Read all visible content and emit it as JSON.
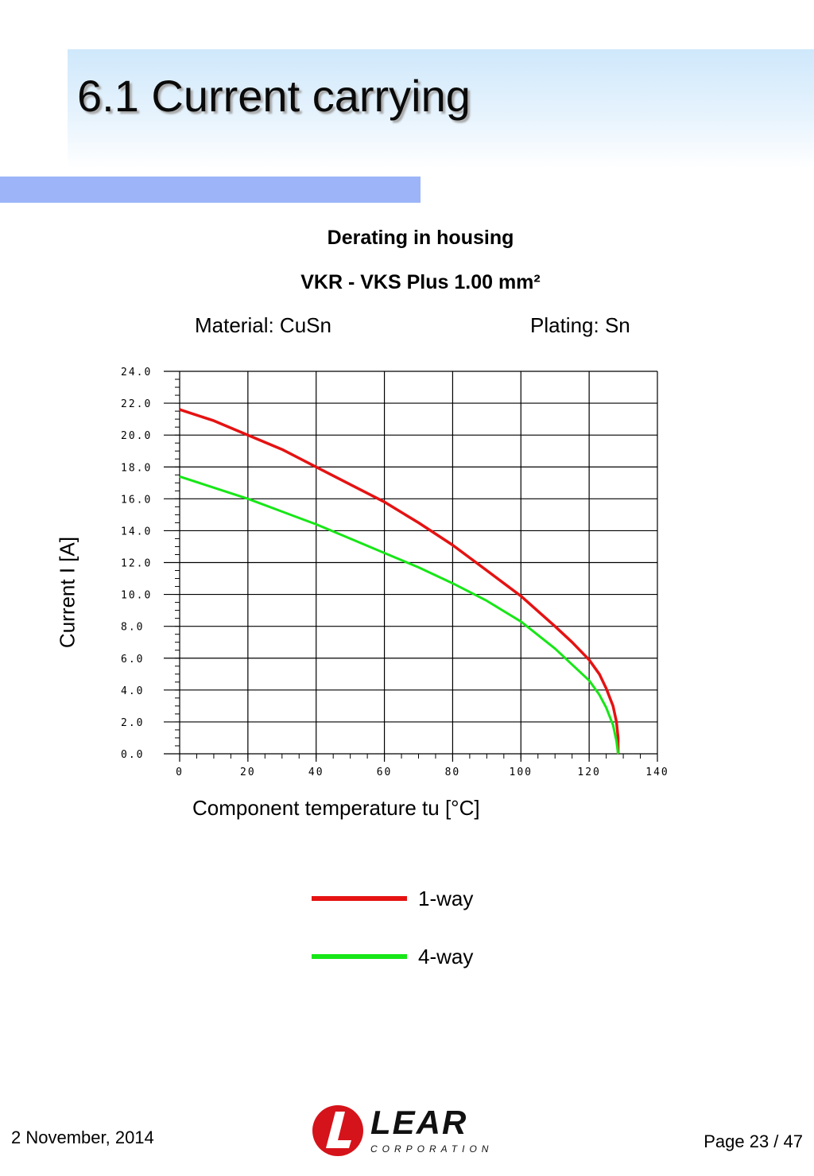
{
  "page": {
    "title": "6.1 Current carrying",
    "chart_title_1": "Derating in housing",
    "chart_title_2": "VKR - VKS  Plus 1.00 mm²",
    "material": "Material: CuSn",
    "plating": "Plating: Sn",
    "footer_date": "2 November, 2014",
    "footer_page": "Page 23 / 47",
    "logo_text": "LEAR",
    "logo_sub": "CORPORATION"
  },
  "colors": {
    "accent_bar": "#9db5f8",
    "red_series": "#e51212",
    "green_series": "#17e617"
  },
  "chart_data": {
    "type": "line",
    "xlabel": "Component temperature tu [°C]",
    "ylabel": "Current I [A]",
    "xlim": [
      0,
      140
    ],
    "ylim": [
      0,
      24
    ],
    "x_ticks": [
      "0",
      "20",
      "40",
      "60",
      "80",
      "100",
      "120",
      "140"
    ],
    "y_ticks": [
      "0.0",
      "2.0",
      "4.0",
      "6.0",
      "8.0",
      "10.0",
      "12.0",
      "14.0",
      "16.0",
      "18.0",
      "20.0",
      "22.0",
      "24.0"
    ],
    "grid": true,
    "legend_position": "bottom",
    "series": [
      {
        "name": "1-way",
        "color": "#e51212",
        "x": [
          0,
          10,
          20,
          30,
          40,
          50,
          60,
          70,
          80,
          90,
          100,
          110,
          115,
          120,
          123,
          125,
          127,
          128,
          128.5,
          128.5
        ],
        "y": [
          21.6,
          20.9,
          20.0,
          19.1,
          18.0,
          16.9,
          15.8,
          14.5,
          13.1,
          11.5,
          9.9,
          8.0,
          7.0,
          5.9,
          5.0,
          4.1,
          3.0,
          2.0,
          1.0,
          0.0
        ]
      },
      {
        "name": "4-way",
        "color": "#17e617",
        "x": [
          0,
          10,
          20,
          30,
          40,
          50,
          60,
          70,
          80,
          90,
          100,
          110,
          115,
          120,
          123,
          125,
          127,
          128,
          128.5
        ],
        "y": [
          17.4,
          16.7,
          16.0,
          15.2,
          14.4,
          13.5,
          12.6,
          11.7,
          10.7,
          9.6,
          8.3,
          6.6,
          5.6,
          4.6,
          3.7,
          2.9,
          1.8,
          0.8,
          0.0
        ]
      }
    ]
  }
}
